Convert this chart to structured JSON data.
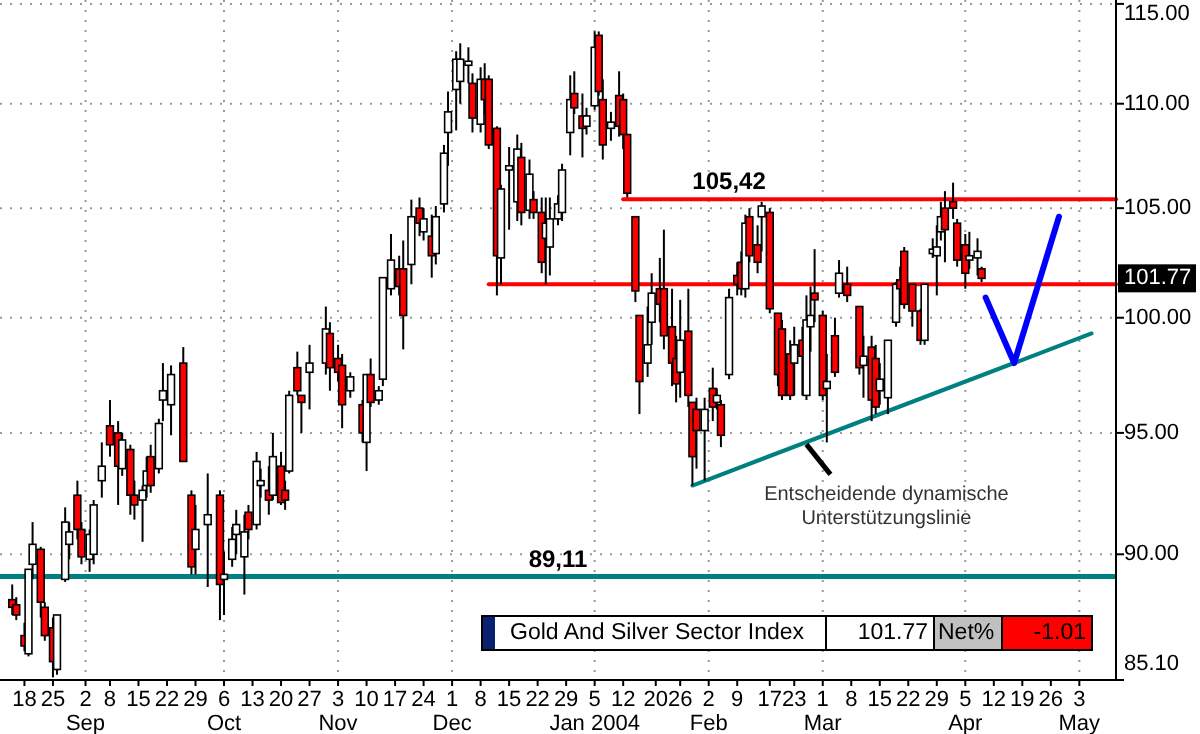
{
  "chart_data": {
    "type": "candlestick",
    "log": "y",
    "grid": true,
    "legend": "bottom right",
    "xlim": [
      "2003-08-12",
      "2004-05-12"
    ],
    "ylim": [
      85.1,
      115.2
    ],
    "yticks": [
      {
        "value": 85.1,
        "label": "85.10"
      },
      {
        "value": 90,
        "label": "90.00"
      },
      {
        "value": 95,
        "label": "95.00"
      },
      {
        "value": 100,
        "label": "100.00"
      },
      {
        "value": 105,
        "label": "105.00"
      },
      {
        "value": 110,
        "label": "110.00"
      },
      {
        "value": 115,
        "label": "115.00"
      }
    ],
    "xticks": [
      {
        "value": "2003-08-18",
        "label": "18"
      },
      {
        "value": "2003-08-25",
        "label": "25"
      },
      {
        "value": "2003-09-02",
        "label": "2\nSep"
      },
      {
        "value": "2003-09-08",
        "label": "8"
      },
      {
        "value": "2003-09-15",
        "label": "15"
      },
      {
        "value": "2003-09-22",
        "label": "22"
      },
      {
        "value": "2003-09-29",
        "label": "29"
      },
      {
        "value": "2003-10-06",
        "label": "6\nOct"
      },
      {
        "value": "2003-10-13",
        "label": "13"
      },
      {
        "value": "2003-10-20",
        "label": "20"
      },
      {
        "value": "2003-10-27",
        "label": "27"
      },
      {
        "value": "2003-11-03",
        "label": "3\nNov"
      },
      {
        "value": "2003-11-10",
        "label": "10"
      },
      {
        "value": "2003-11-17",
        "label": "17"
      },
      {
        "value": "2003-11-24",
        "label": "24"
      },
      {
        "value": "2003-12-01",
        "label": "1\nDec"
      },
      {
        "value": "2003-12-08",
        "label": "8"
      },
      {
        "value": "2003-12-15",
        "label": "15"
      },
      {
        "value": "2003-12-22",
        "label": "22"
      },
      {
        "value": "2003-12-29",
        "label": "29"
      },
      {
        "value": "2004-01-05",
        "label": "5\nJan 2004"
      },
      {
        "value": "2004-01-12",
        "label": "12"
      },
      {
        "value": "2004-01-20",
        "label": "20"
      },
      {
        "value": "2004-01-26",
        "label": "26"
      },
      {
        "value": "2004-02-02",
        "label": "2\nFeb"
      },
      {
        "value": "2004-02-09",
        "label": "9"
      },
      {
        "value": "2004-02-17",
        "label": "17"
      },
      {
        "value": "2004-02-23",
        "label": "23"
      },
      {
        "value": "2004-03-01",
        "label": "1\nMar"
      },
      {
        "value": "2004-03-08",
        "label": "8"
      },
      {
        "value": "2004-03-15",
        "label": "15"
      },
      {
        "value": "2004-03-22",
        "label": "22"
      },
      {
        "value": "2004-03-29",
        "label": "29"
      },
      {
        "value": "2004-04-05",
        "label": "5\nApr"
      },
      {
        "value": "2004-04-12",
        "label": "12"
      },
      {
        "value": "2004-04-19",
        "label": "19"
      },
      {
        "value": "2004-04-26",
        "label": "26"
      },
      {
        "value": "2004-05-03",
        "label": "3\nMay"
      }
    ],
    "ref_lines": [
      {
        "axis": "y",
        "value": 89.11,
        "label": "89,11",
        "color": "#008080"
      }
    ],
    "annotations": [
      {
        "text": "105,42",
        "x": "2004-02-07",
        "y": 105.42
      },
      "101.77",
      {
        "text": "Entscheidende dynamische\nUnterstützungslinie",
        "x": "2004-02-26",
        "y": 94.6
      },
      "101.77",
      "Net%",
      "-1.01"
    ],
    "series": [
      {
        "name": "Gold And Silver Sector Index",
        "x": [
          "2003-08-15",
          "2003-08-16",
          "2003-08-18",
          "2003-08-19",
          "2003-08-20",
          "2003-08-22",
          "2003-08-23",
          "2003-08-25",
          "2003-08-26",
          "2003-08-28",
          "2003-08-29",
          "2003-08-31",
          "2003-09-01",
          "2003-09-03",
          "2003-09-04",
          "2003-09-06",
          "2003-09-08",
          "2003-09-10",
          "2003-09-11",
          "2003-09-13",
          "2003-09-14",
          "2003-09-16",
          "2003-09-17",
          "2003-09-18",
          "2003-09-20",
          "2003-09-21",
          "2003-09-23",
          "2003-09-26",
          "2003-09-28",
          "2003-09-29",
          "2003-10-02",
          "2003-10-05",
          "2003-10-06",
          "2003-10-08",
          "2003-10-09",
          "2003-10-11",
          "2003-10-12",
          "2003-10-14",
          "2003-10-15",
          "2003-10-17",
          "2003-10-18",
          "2003-10-20",
          "2003-10-21",
          "2003-10-22",
          "2003-10-24",
          "2003-10-25",
          "2003-10-27",
          "2003-10-31",
          "2003-11-01",
          "2003-11-03",
          "2003-11-04",
          "2003-11-06",
          "2003-11-09",
          "2003-11-10",
          "2003-11-11",
          "2003-11-13",
          "2003-11-14",
          "2003-11-16",
          "2003-11-18",
          "2003-11-19",
          "2003-11-21",
          "2003-11-23",
          "2003-11-24",
          "2003-11-26",
          "2003-11-27",
          "2003-11-29",
          "2003-11-30",
          "2003-12-02",
          "2003-12-03",
          "2003-12-05",
          "2003-12-06",
          "2003-12-08",
          "2003-12-09",
          "2003-12-10",
          "2003-12-12",
          "2003-12-13",
          "2003-12-15",
          "2003-12-17",
          "2003-12-18",
          "2003-12-20",
          "2003-12-21",
          "2003-12-23",
          "2003-12-24",
          "2003-12-25",
          "2003-12-27",
          "2003-12-28",
          "2003-12-30",
          "2003-12-31",
          "2004-01-02",
          "2004-01-03",
          "2004-01-05",
          "2004-01-06",
          "2004-01-07",
          "2004-01-09",
          "2004-01-11",
          "2004-01-12",
          "2004-01-13",
          "2004-01-15",
          "2004-01-16",
          "2004-01-18",
          "2004-01-19",
          "2004-01-21",
          "2004-01-22",
          "2004-01-24",
          "2004-01-25",
          "2004-01-26",
          "2004-01-28",
          "2004-01-29",
          "2004-01-30",
          "2004-02-01",
          "2004-02-03",
          "2004-02-04",
          "2004-02-05",
          "2004-02-07",
          "2004-02-09",
          "2004-02-10",
          "2004-02-11",
          "2004-02-12",
          "2004-02-14",
          "2004-02-15",
          "2004-02-17",
          "2004-02-19",
          "2004-02-20",
          "2004-02-22",
          "2004-02-23",
          "2004-02-25",
          "2004-02-26",
          "2004-02-27",
          "2004-02-28",
          "2004-03-01",
          "2004-03-02",
          "2004-03-04",
          "2004-03-05",
          "2004-03-07",
          "2004-03-10",
          "2004-03-11",
          "2004-03-13",
          "2004-03-14",
          "2004-03-15",
          "2004-03-17",
          "2004-03-19",
          "2004-03-20",
          "2004-03-21",
          "2004-03-23",
          "2004-03-25",
          "2004-03-26",
          "2004-03-28",
          "2004-03-29",
          "2004-03-30",
          "2004-03-31",
          "2004-04-02",
          "2004-04-03",
          "2004-04-05",
          "2004-04-06",
          "2004-04-08",
          "2004-04-09"
        ],
        "ohlc": [
          [
            88.2,
            88.8,
            87.6,
            87.9
          ],
          [
            88.0,
            88.3,
            87.4,
            87.6
          ],
          [
            86.8,
            87.3,
            86.2,
            86.4
          ],
          [
            86.1,
            89.4,
            86.0,
            89.4
          ],
          [
            89.6,
            91.3,
            89.0,
            90.4
          ],
          [
            90.2,
            90.3,
            87.5,
            88.1
          ],
          [
            87.9,
            88.1,
            86.6,
            86.8
          ],
          [
            87.1,
            87.5,
            85.2,
            85.8
          ],
          [
            85.5,
            87.6,
            85.3,
            87.6
          ],
          [
            89.0,
            91.9,
            88.9,
            91.3
          ],
          [
            90.4,
            91.3,
            89.8,
            90.9
          ],
          [
            92.4,
            93.0,
            90.6,
            91.0
          ],
          [
            91.0,
            91.3,
            89.6,
            89.9
          ],
          [
            89.8,
            91.0,
            89.3,
            90.8
          ],
          [
            90.0,
            92.2,
            89.6,
            92.0
          ],
          [
            93.0,
            94.6,
            92.3,
            93.6
          ],
          [
            95.3,
            96.4,
            94.0,
            94.5
          ],
          [
            95.0,
            95.5,
            92.0,
            93.6
          ],
          [
            93.5,
            95.0,
            93.2,
            94.7
          ],
          [
            94.3,
            94.5,
            91.6,
            92.4
          ],
          [
            92.4,
            93.0,
            91.4,
            92.0
          ],
          [
            92.2,
            92.8,
            90.5,
            92.6
          ],
          [
            92.8,
            94.0,
            92.3,
            93.4
          ],
          [
            94.0,
            94.5,
            92.5,
            92.8
          ],
          [
            93.5,
            95.6,
            93.3,
            95.4
          ],
          [
            96.4,
            98.0,
            95.5,
            96.8
          ],
          [
            96.2,
            97.9,
            94.9,
            97.5
          ],
          [
            98.0,
            98.7,
            93.8,
            93.8
          ],
          [
            92.4,
            92.6,
            89.2,
            89.5
          ],
          [
            90.2,
            92.0,
            89.2,
            91.0
          ],
          [
            91.2,
            93.3,
            88.7,
            91.6
          ],
          [
            92.4,
            92.6,
            87.4,
            88.8
          ],
          [
            89.0,
            90.1,
            87.6,
            89.2
          ],
          [
            89.8,
            91.1,
            89.5,
            90.6
          ],
          [
            90.8,
            91.8,
            90.0,
            91.2
          ],
          [
            89.9,
            91.6,
            88.4,
            90.9
          ],
          [
            91.7,
            92.0,
            90.6,
            91.0
          ],
          [
            91.2,
            94.2,
            91.0,
            93.8
          ],
          [
            92.8,
            93.5,
            92.3,
            93.0
          ],
          [
            92.6,
            93.6,
            91.6,
            92.2
          ],
          [
            92.4,
            95.0,
            92.2,
            94.0
          ],
          [
            93.6,
            94.2,
            92.0,
            92.1
          ],
          [
            92.6,
            93.0,
            91.8,
            92.2
          ],
          [
            93.4,
            96.8,
            93.3,
            96.6
          ],
          [
            97.8,
            98.5,
            96.6,
            96.8
          ],
          [
            96.6,
            96.6,
            95.0,
            96.3
          ],
          [
            97.6,
            98.8,
            96.0,
            98.0
          ],
          [
            98.0,
            100.5,
            97.5,
            99.5
          ],
          [
            99.3,
            99.8,
            96.8,
            97.8
          ],
          [
            98.2,
            98.8,
            97.2,
            97.6
          ],
          [
            97.9,
            98.4,
            95.2,
            96.2
          ],
          [
            96.8,
            97.6,
            96.5,
            97.4
          ],
          [
            96.2,
            96.4,
            94.6,
            95.0
          ],
          [
            94.6,
            97.5,
            93.4,
            97.5
          ],
          [
            97.5,
            98.2,
            96.1,
            96.3
          ],
          [
            96.4,
            97.0,
            96.2,
            96.8
          ],
          [
            97.3,
            101.8,
            97.0,
            101.8
          ],
          [
            101.3,
            103.8,
            101.0,
            102.6
          ],
          [
            102.2,
            102.8,
            101.0,
            101.4
          ],
          [
            102.2,
            103.5,
            98.6,
            100.1
          ],
          [
            102.4,
            105.4,
            101.5,
            104.6
          ],
          [
            105.0,
            105.5,
            103.7,
            104.3
          ],
          [
            103.9,
            105.0,
            103.5,
            104.5
          ],
          [
            103.7,
            104.7,
            101.8,
            102.8
          ],
          [
            102.9,
            105.1,
            102.4,
            104.6
          ],
          [
            105.2,
            108.0,
            104.8,
            107.6
          ],
          [
            108.6,
            110.6,
            107.0,
            109.6
          ],
          [
            110.7,
            112.6,
            108.7,
            112.2
          ],
          [
            111.1,
            113.0,
            110.0,
            112.2
          ],
          [
            111.9,
            112.8,
            111.0,
            112.1
          ],
          [
            111.0,
            111.5,
            108.6,
            109.3
          ],
          [
            109.0,
            111.8,
            108.6,
            111.2
          ],
          [
            111.2,
            112.0,
            109.5,
            110.2
          ],
          [
            111.2,
            111.4,
            107.8,
            108.0
          ],
          [
            108.8,
            108.9,
            101.0,
            102.8
          ],
          [
            102.7,
            106.1,
            101.5,
            105.9
          ],
          [
            106.8,
            107.9,
            104.0,
            107.0
          ],
          [
            105.3,
            108.5,
            104.4,
            107.8
          ],
          [
            107.4,
            108.1,
            104.2,
            104.8
          ],
          [
            104.9,
            107.3,
            104.5,
            106.6
          ],
          [
            105.4,
            105.8,
            104.5,
            104.8
          ],
          [
            104.8,
            105.5,
            102.0,
            102.5
          ],
          [
            103.6,
            105.5,
            101.5,
            104.3
          ],
          [
            103.2,
            105.5,
            101.9,
            104.5
          ],
          [
            104.5,
            105.6,
            104.2,
            105.2
          ],
          [
            104.8,
            107.1,
            104.4,
            106.8
          ],
          [
            108.6,
            111.4,
            107.5,
            110.2
          ],
          [
            110.5,
            111.6,
            109.5,
            109.8
          ],
          [
            109.4,
            110.5,
            107.4,
            108.8
          ],
          [
            108.9,
            109.8,
            108.5,
            109.4
          ],
          [
            109.9,
            113.6,
            109.7,
            112.8
          ],
          [
            113.4,
            113.6,
            110.4,
            110.6
          ],
          [
            110.2,
            111.2,
            107.3,
            108.0
          ],
          [
            108.8,
            109.6,
            108.2,
            109.1
          ],
          [
            110.4,
            111.6,
            108.4,
            108.9
          ],
          [
            110.2,
            110.5,
            107.8,
            108.5
          ],
          [
            108.5,
            108.5,
            105.5,
            105.7
          ],
          [
            104.6,
            104.6,
            100.7,
            101.2
          ],
          [
            100.1,
            100.1,
            95.8,
            97.2
          ],
          [
            98.0,
            100.5,
            97.4,
            98.8
          ],
          [
            99.8,
            102.0,
            98.8,
            101.1
          ],
          [
            101.3,
            102.7,
            99.8,
            100.6
          ],
          [
            101.3,
            104.0,
            98.6,
            99.2
          ],
          [
            99.6,
            101.3,
            97.0,
            98.0
          ],
          [
            98.2,
            99.2,
            96.3,
            97.1
          ],
          [
            97.6,
            100.8,
            96.5,
            99.0
          ],
          [
            99.4,
            101.3,
            96.1,
            96.6
          ],
          [
            96.3,
            96.3,
            92.8,
            94.0
          ],
          [
            96.0,
            96.5,
            93.5,
            95.1
          ],
          [
            95.1,
            96.5,
            93.0,
            96.0
          ],
          [
            96.9,
            97.8,
            95.5,
            96.1
          ],
          [
            96.3,
            96.9,
            96.0,
            96.6
          ],
          [
            96.2,
            96.4,
            94.4,
            94.9
          ],
          [
            97.5,
            101.3,
            97.3,
            100.9
          ],
          [
            101.9,
            102.5,
            101.0,
            101.5
          ],
          [
            102.5,
            103.0,
            101.0,
            101.3
          ],
          [
            101.3,
            104.7,
            100.9,
            104.3
          ],
          [
            104.6,
            105.0,
            102.5,
            102.8
          ],
          [
            103.3,
            104.2,
            102.0,
            102.5
          ],
          [
            104.6,
            105.3,
            103.0,
            105.1
          ],
          [
            104.8,
            105.0,
            100.2,
            100.4
          ],
          [
            100.2,
            100.2,
            97.0,
            97.5
          ],
          [
            99.5,
            99.9,
            96.4,
            96.6
          ],
          [
            98.4,
            99.0,
            96.4,
            96.6
          ],
          [
            98.0,
            99.6,
            96.6,
            98.8
          ],
          [
            99.0,
            99.6,
            96.6,
            98.3
          ],
          [
            96.6,
            101.0,
            96.4,
            99.9
          ],
          [
            99.6,
            101.4,
            98.5,
            100.1
          ],
          [
            101.1,
            103.1,
            99.8,
            100.8
          ],
          [
            100.1,
            100.3,
            96.4,
            96.6
          ],
          [
            96.9,
            98.4,
            94.6,
            97.2
          ],
          [
            99.2,
            100.0,
            97.4,
            97.6
          ],
          [
            101.1,
            102.6,
            100.9,
            102.0
          ],
          [
            101.5,
            102.3,
            100.7,
            101.0
          ],
          [
            100.5,
            100.5,
            97.5,
            97.8
          ],
          [
            97.9,
            99.2,
            96.5,
            98.3
          ],
          [
            98.7,
            99.2,
            95.5,
            96.4
          ],
          [
            98.2,
            98.8,
            95.8,
            96.1
          ],
          [
            96.8,
            98.0,
            96.2,
            97.3
          ],
          [
            96.5,
            99.0,
            95.8,
            99.0
          ],
          [
            99.8,
            101.6,
            99.6,
            101.5
          ],
          [
            101.7,
            102.3,
            101.0,
            101.3
          ],
          [
            103.0,
            103.2,
            100.4,
            100.6
          ],
          [
            101.5,
            101.5,
            99.6,
            100.3
          ],
          [
            100.3,
            100.4,
            98.8,
            99.0
          ],
          [
            99.0,
            101.5,
            98.8,
            101.5
          ],
          [
            102.9,
            103.6,
            102.7,
            103.1
          ],
          [
            102.8,
            104.2,
            101.0,
            103.2
          ],
          [
            103.9,
            105.3,
            103.5,
            104.6
          ],
          [
            105.0,
            105.8,
            102.5,
            104.0
          ],
          [
            105.3,
            106.2,
            104.5,
            105.0
          ],
          [
            104.3,
            104.5,
            102.3,
            102.6
          ],
          [
            103.3,
            103.8,
            101.3,
            102.0
          ],
          [
            102.6,
            103.9,
            102.2,
            102.8
          ],
          [
            102.7,
            103.6,
            101.9,
            103.0
          ],
          [
            102.2,
            102.3,
            101.6,
            101.77
          ]
        ]
      },
      {
        "type": "line",
        "color": "#ff0000",
        "x": [
          "2004-01-12",
          "2004-05-12"
        ],
        "values": [
          105.42,
          105.42
        ]
      },
      {
        "type": "line",
        "color": "#ff0000",
        "x": [
          "2003-12-10",
          "2004-05-12"
        ],
        "values": [
          101.5,
          101.5
        ]
      },
      {
        "type": "line",
        "color": "#008080",
        "x": [
          "2004-01-29",
          "2004-05-06"
        ],
        "values": [
          92.8,
          99.3
        ]
      },
      {
        "type": "line",
        "color": "#0000ff",
        "x": [
          "2004-04-10",
          "2004-04-17",
          "2004-04-28"
        ],
        "values": [
          100.9,
          98.0,
          104.6
        ]
      }
    ]
  }
}
